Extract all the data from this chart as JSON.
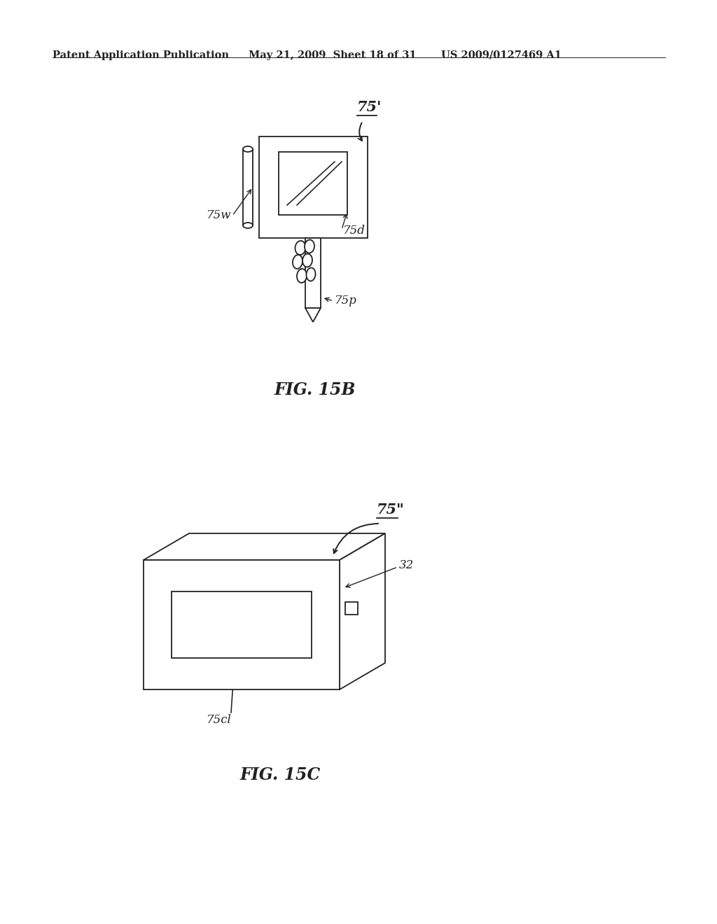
{
  "background_color": "#ffffff",
  "header_left": "Patent Application Publication",
  "header_mid": "May 21, 2009  Sheet 18 of 31",
  "header_right": "US 2009/0127469 A1",
  "fig15b_label": "FIG. 15B",
  "fig15c_label": "FIG. 15C",
  "label_75prime": "75'",
  "label_75w": "75w",
  "label_75d": "75d",
  "label_75p": "75p",
  "label_75doubleprime": "75\"",
  "label_32": "32",
  "label_75cl": "75cl"
}
